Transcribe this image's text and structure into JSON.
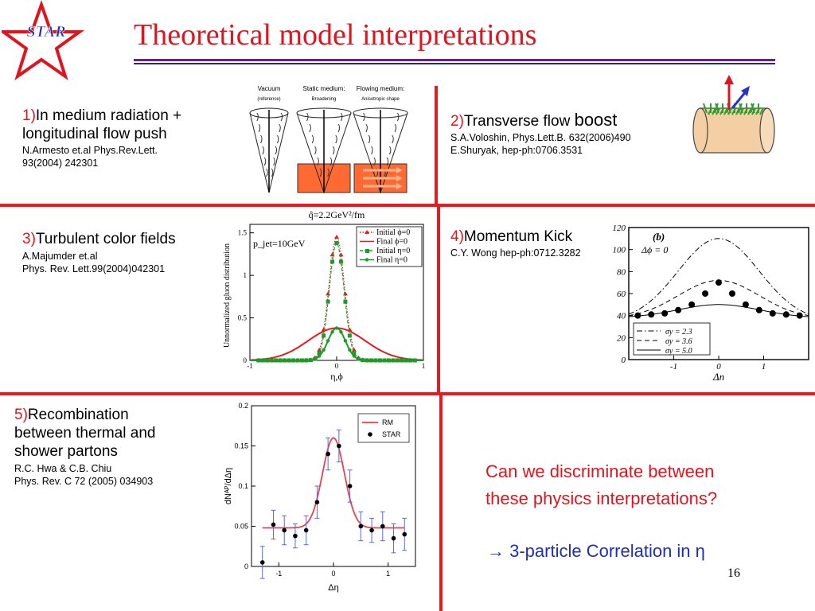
{
  "logo": {
    "text": "STAR"
  },
  "slide": {
    "title": "Theoretical model interpretations",
    "page_number": "16"
  },
  "models": [
    {
      "num": "1)",
      "title": "In medium radiation + longitudinal flow push",
      "refs": [
        "N.Armesto et.al Phys.Rev.Lett.",
        "93(2004) 242301"
      ]
    },
    {
      "num": "2)",
      "title_a": "Transverse flow ",
      "title_b": "boost",
      "refs": [
        "S.A.Voloshin, Phys.Lett.B. 632(2006)490",
        "E.Shuryak, hep-ph:0706.3531"
      ]
    },
    {
      "num": "3)",
      "title": "Turbulent color fields",
      "refs": [
        "A.Majumder et.al",
        "Phys. Rev. Lett.99(2004)042301"
      ]
    },
    {
      "num": "4)",
      "title": "Momentum Kick",
      "refs": [
        "C.Y. Wong  hep-ph:0712.3282"
      ]
    },
    {
      "num": "5)",
      "title_lines": [
        "Recombination",
        "between thermal and",
        "shower partons"
      ],
      "refs": [
        "R.C. Hwa & C.B. Chiu",
        "Phys. Rev. C 72 (2005) 034903"
      ]
    }
  ],
  "question": {
    "line1": "Can we discriminate between",
    "line2": "these physics interpretations?",
    "arrow": "→",
    "answer": " 3-particle Correlation in η"
  },
  "fig1": {
    "panels": [
      {
        "title": "Vacuum",
        "sub": "(reference)"
      },
      {
        "title": "Static medium:",
        "sub": "Broadening"
      },
      {
        "title": "Flowing medium:",
        "sub": "Anisotropic shape"
      }
    ],
    "colors": {
      "medium": "#ff6a33",
      "flow": "#ffb38a"
    }
  },
  "chart_data": [
    {
      "type": "line",
      "title": "q̂=2.2GeV²/fm",
      "xlabel": "η,ϕ",
      "ylabel": "Unnormalized gluon distribution",
      "xlim": [
        -1,
        1
      ],
      "ylim": [
        0,
        1.6
      ],
      "xticks": [
        "-1",
        "0",
        "1"
      ],
      "yticks": [
        "0",
        "0.5",
        "1",
        "1.5"
      ],
      "annotation": "p_jet=10GeV",
      "legend_position": "top-right",
      "series": [
        {
          "name": "Initial ϕ=0",
          "color": "#e8191f",
          "marker": "triangle",
          "line": "dotted",
          "width": 0.09,
          "peak": 1.45
        },
        {
          "name": "Final ϕ=0",
          "color": "#e8191f",
          "marker": "none",
          "line": "solid",
          "width": 0.33,
          "peak": 0.38
        },
        {
          "name": "Initial η=0",
          "color": "#1e9a28",
          "marker": "square",
          "line": "dashed",
          "width": 0.085,
          "peak": 1.38
        },
        {
          "name": "Final η=0",
          "color": "#1e9a28",
          "marker": "circle",
          "line": "solid",
          "width": 0.1,
          "peak": 0.38
        }
      ]
    },
    {
      "type": "line",
      "xlabel": "Δη",
      "xlim": [
        -2,
        2
      ],
      "ylim": [
        0,
        120
      ],
      "xticks": [
        "-1",
        "0",
        "1"
      ],
      "yticks": [
        "0",
        "20",
        "40",
        "60",
        "80",
        "100",
        "120"
      ],
      "panel_label": "(b)",
      "annotation": "Δϕ = 0",
      "legend_position": "bottom-center",
      "series": [
        {
          "name": "σy = 2.3",
          "style": "dashdot",
          "base": 35,
          "amp": 75,
          "width": 0.9
        },
        {
          "name": "σy = 3.6",
          "style": "dashed",
          "base": 37,
          "amp": 35,
          "width": 0.9
        },
        {
          "name": "σy = 5.0",
          "style": "solid",
          "base": 38,
          "amp": 12,
          "width": 0.9
        }
      ],
      "points": {
        "x": [
          -1.8,
          -1.5,
          -1.2,
          -0.9,
          -0.6,
          -0.3,
          0,
          0.3,
          0.6,
          0.9,
          1.2,
          1.5,
          1.8
        ],
        "y": [
          40,
          41,
          42,
          45,
          50,
          60,
          70,
          60,
          50,
          45,
          42,
          41,
          40
        ]
      }
    },
    {
      "type": "scatter",
      "xlabel": "Δη",
      "ylabel": "dNᴬᴾ/dΔη",
      "xlim": [
        -1.5,
        1.5
      ],
      "ylim": [
        0,
        0.2
      ],
      "xticks": [
        "-1",
        "0",
        "1"
      ],
      "yticks": [
        "0",
        "0.05",
        "0.1",
        "0.15",
        "0.2"
      ],
      "legend_position": "top-right",
      "series": [
        {
          "name": "RM",
          "color": "#e8414f",
          "base": 0.048,
          "amp": 0.112,
          "sigma": 0.2
        },
        {
          "name": "STAR",
          "color": "#000000",
          "x": [
            -1.3,
            -1.1,
            -0.9,
            -0.7,
            -0.5,
            -0.3,
            -0.1,
            0.1,
            0.3,
            0.5,
            0.7,
            0.9,
            1.1,
            1.3
          ],
          "y": [
            0.005,
            0.052,
            0.045,
            0.038,
            0.045,
            0.08,
            0.14,
            0.15,
            0.1,
            0.05,
            0.045,
            0.05,
            0.035,
            0.04
          ],
          "err": [
            0.02,
            0.018,
            0.018,
            0.015,
            0.018,
            0.02,
            0.02,
            0.02,
            0.02,
            0.018,
            0.015,
            0.018,
            0.018,
            0.02
          ]
        }
      ]
    }
  ]
}
